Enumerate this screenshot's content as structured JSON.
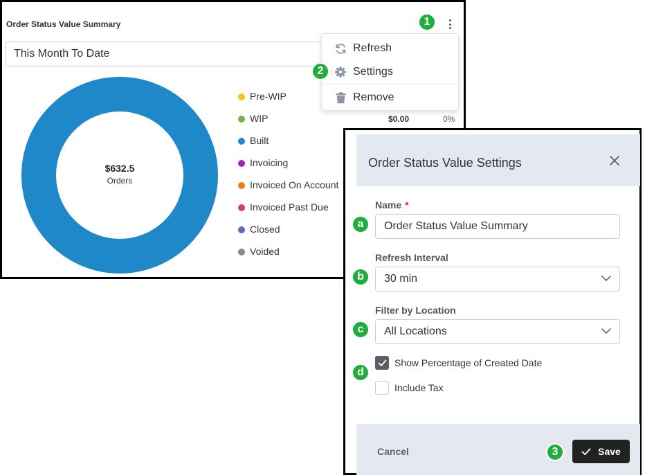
{
  "widget": {
    "title": "Order Status Value Summary",
    "date_range": "This Month To Date",
    "center_value": "$632.5",
    "center_label": "Orders",
    "chart_data": {
      "type": "pie",
      "categories": [
        "Pre-WIP",
        "WIP",
        "Built",
        "Invoicing",
        "Invoiced On Account",
        "Invoiced Past Due",
        "Closed",
        "Voided"
      ],
      "values": [
        0,
        0,
        632.5,
        0,
        0,
        0,
        0,
        0
      ],
      "colors": [
        "#f5c518",
        "#7cb342",
        "#1e88c8",
        "#9c27b0",
        "#ef7c1a",
        "#d9434f",
        "#5c6bc0",
        "#888888"
      ],
      "center_value": "$632.5",
      "center_label": "Orders",
      "donut": true
    },
    "legend": [
      {
        "label": "Pre-WIP",
        "color": "#f5c518"
      },
      {
        "label": "WIP",
        "color": "#7cb342"
      },
      {
        "label": "Built",
        "color": "#1e88c8"
      },
      {
        "label": "Invoicing",
        "color": "#9c27b0"
      },
      {
        "label": "Invoiced On Account",
        "color": "#ef7c1a"
      },
      {
        "label": "Invoiced Past Due",
        "color": "#d9434f"
      },
      {
        "label": "Closed",
        "color": "#5c6bc0"
      },
      {
        "label": "Voided",
        "color": "#888888"
      }
    ],
    "wip_amount": "$0.00",
    "wip_percent": "0%"
  },
  "menu": {
    "refresh_label": "Refresh",
    "settings_label": "Settings",
    "remove_label": "Remove",
    "refresh_icon": "refresh-icon",
    "settings_icon": "gear-icon",
    "remove_icon": "trash-icon"
  },
  "badges": {
    "menu": "1",
    "settings": "2",
    "save": "3",
    "name": "a",
    "refresh": "b",
    "location": "c",
    "options": "d"
  },
  "badge_color": "#1fae3c",
  "settings": {
    "title": "Order Status Value Settings",
    "name_label": "Name",
    "required_mark": "*",
    "name_value": "Order Status Value Summary",
    "refresh_label": "Refresh Interval",
    "refresh_value": "30 min",
    "location_label": "Filter by Location",
    "location_value": "All Locations",
    "show_pct_label": "Show Percentage of Created Date",
    "show_pct_checked": true,
    "include_tax_label": "Include Tax",
    "include_tax_checked": false,
    "cancel_label": "Cancel",
    "save_label": "Save"
  }
}
